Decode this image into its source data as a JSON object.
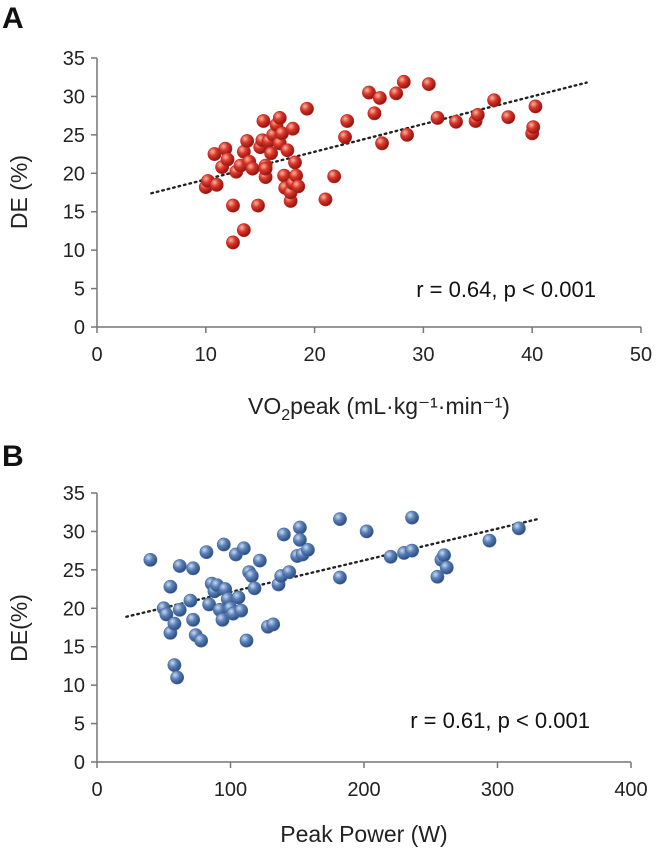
{
  "chart_data": [
    {
      "panel": "A",
      "type": "scatter",
      "xlabel_main": "VO",
      "xlabel_sub": "2",
      "xlabel_rest": "peak (mL·kg⁻¹·min⁻¹)",
      "ylabel": "DE (%)",
      "xlim": [
        0,
        50
      ],
      "ylim": [
        0,
        35
      ],
      "xticks": [
        "0",
        "10",
        "20",
        "30",
        "40",
        "50"
      ],
      "yticks": [
        "0",
        "5",
        "10",
        "15",
        "20",
        "25",
        "30",
        "35"
      ],
      "annotation": "r = 0.64, p < 0.001",
      "marker_color": "#c0281e",
      "trendline": {
        "x0": 5,
        "y0": 17.4,
        "x1": 45,
        "y1": 31.8
      },
      "points": [
        [
          10,
          18.2
        ],
        [
          10.2,
          19
        ],
        [
          10.8,
          22.5
        ],
        [
          11,
          18.5
        ],
        [
          11.5,
          20.8
        ],
        [
          11.8,
          23.2
        ],
        [
          12,
          21.8
        ],
        [
          12.5,
          15.8
        ],
        [
          12.5,
          11
        ],
        [
          12.8,
          20.2
        ],
        [
          13.2,
          21
        ],
        [
          13.5,
          12.6
        ],
        [
          13.5,
          22.8
        ],
        [
          13.8,
          24.2
        ],
        [
          14,
          21.5
        ],
        [
          14.3,
          20.6
        ],
        [
          14.8,
          15.8
        ],
        [
          15,
          23.4
        ],
        [
          15.2,
          24.3
        ],
        [
          15.3,
          26.8
        ],
        [
          15.5,
          21
        ],
        [
          15.5,
          19.5
        ],
        [
          15.5,
          20.6
        ],
        [
          15.8,
          24.2
        ],
        [
          16,
          22.6
        ],
        [
          16.2,
          25
        ],
        [
          16.5,
          26.3
        ],
        [
          16.8,
          27.2
        ],
        [
          16.8,
          23.9
        ],
        [
          17,
          25.2
        ],
        [
          17.2,
          19.7
        ],
        [
          17.3,
          18.1
        ],
        [
          17.5,
          23
        ],
        [
          17.8,
          16.4
        ],
        [
          17.8,
          17.5
        ],
        [
          18,
          18.7
        ],
        [
          18,
          25.8
        ],
        [
          18.2,
          21.4
        ],
        [
          18.3,
          19.7
        ],
        [
          18.5,
          18.3
        ],
        [
          19.3,
          28.4
        ],
        [
          21,
          16.6
        ],
        [
          21.8,
          19.6
        ],
        [
          22.8,
          24.7
        ],
        [
          23,
          26.8
        ],
        [
          25,
          30.5
        ],
        [
          25.5,
          27.8
        ],
        [
          26,
          29.8
        ],
        [
          26.2,
          23.9
        ],
        [
          27.5,
          30.4
        ],
        [
          28.2,
          31.9
        ],
        [
          28.5,
          25
        ],
        [
          30.5,
          31.6
        ],
        [
          31.3,
          27.2
        ],
        [
          33,
          26.7
        ],
        [
          34.8,
          26.8
        ],
        [
          35,
          27.6
        ],
        [
          36.5,
          29.5
        ],
        [
          37.8,
          27.3
        ],
        [
          40,
          25.2
        ],
        [
          40.1,
          26
        ],
        [
          40.3,
          28.7
        ]
      ]
    },
    {
      "panel": "B",
      "type": "scatter",
      "xlabel": "Peak Power (W)",
      "ylabel": "DE(%)",
      "xlim": [
        0,
        400
      ],
      "ylim": [
        0,
        35
      ],
      "xticks": [
        "0",
        "100",
        "200",
        "300",
        "400"
      ],
      "yticks": [
        "0",
        "5",
        "10",
        "15",
        "20",
        "25",
        "30",
        "35"
      ],
      "annotation": "r = 0.61, p < 0.001",
      "marker_color": "#4a6fa5",
      "trendline": {
        "x0": 22,
        "y0": 18.9,
        "x1": 330,
        "y1": 31.6
      },
      "points": [
        [
          40,
          26.3
        ],
        [
          50,
          20
        ],
        [
          52,
          19.2
        ],
        [
          55,
          16.8
        ],
        [
          55,
          22.8
        ],
        [
          58,
          18
        ],
        [
          58,
          12.6
        ],
        [
          60,
          11
        ],
        [
          62,
          19.8
        ],
        [
          62,
          25.5
        ],
        [
          70,
          21
        ],
        [
          72,
          25.2
        ],
        [
          72,
          18.5
        ],
        [
          74,
          16.5
        ],
        [
          78,
          15.8
        ],
        [
          82,
          27.3
        ],
        [
          84,
          20.5
        ],
        [
          86,
          23.2
        ],
        [
          88,
          22.2
        ],
        [
          90,
          23
        ],
        [
          92,
          19.8
        ],
        [
          94,
          18.5
        ],
        [
          95,
          28.3
        ],
        [
          96,
          22.5
        ],
        [
          98,
          21.2
        ],
        [
          100,
          20
        ],
        [
          102,
          19.3
        ],
        [
          104,
          27
        ],
        [
          106,
          21.4
        ],
        [
          108,
          19.7
        ],
        [
          110,
          27.8
        ],
        [
          112,
          15.8
        ],
        [
          114,
          24.7
        ],
        [
          116,
          24.2
        ],
        [
          118,
          22.6
        ],
        [
          122,
          26.2
        ],
        [
          128,
          17.6
        ],
        [
          132,
          17.9
        ],
        [
          136,
          23.1
        ],
        [
          138,
          24.2
        ],
        [
          140,
          29.6
        ],
        [
          144,
          24.7
        ],
        [
          150,
          26.8
        ],
        [
          152,
          30.5
        ],
        [
          152,
          28.9
        ],
        [
          154,
          27
        ],
        [
          158,
          27.6
        ],
        [
          182,
          31.6
        ],
        [
          182,
          24
        ],
        [
          202,
          30
        ],
        [
          220,
          26.7
        ],
        [
          230,
          27.2
        ],
        [
          236,
          27.5
        ],
        [
          236,
          31.8
        ],
        [
          255,
          24.1
        ],
        [
          258,
          26.3
        ],
        [
          260,
          26.9
        ],
        [
          262,
          25.3
        ],
        [
          294,
          28.8
        ],
        [
          316,
          30.4
        ]
      ]
    }
  ]
}
